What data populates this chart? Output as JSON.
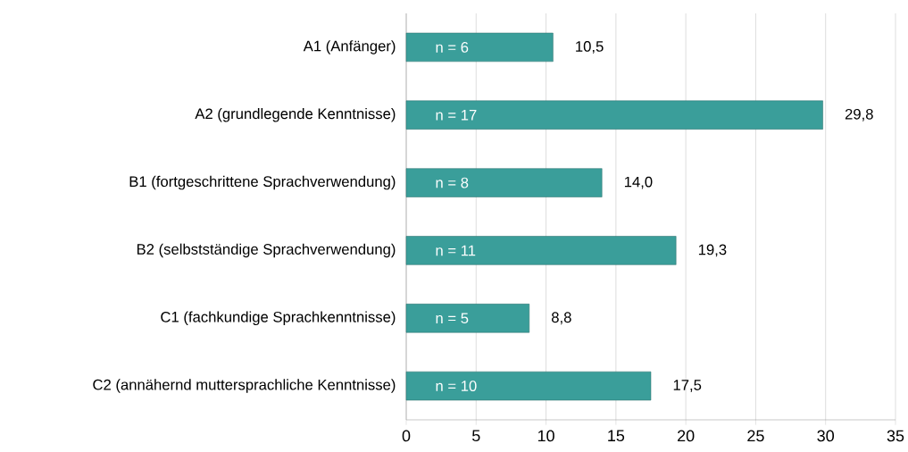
{
  "chart_data": {
    "type": "bar",
    "orientation": "horizontal",
    "categories": [
      "A1 (Anfänger)",
      "A2 (grundlegende Kenntnisse)",
      "B1 (fortgeschrittene Sprachverwendung)",
      "B2 (selbstständige Sprachverwendung)",
      "C1 (fachkundige Sprachkenntnisse)",
      "C2 (annähernd muttersprachliche Kenntnisse)"
    ],
    "values": [
      10.5,
      29.8,
      14.0,
      19.3,
      8.8,
      17.5
    ],
    "value_labels": [
      "10,5",
      "29,8",
      "14,0",
      "19,3",
      "8,8",
      "17,5"
    ],
    "color": "#3a9e9a",
    "xlim": [
      0,
      35
    ],
    "xticks": [
      0,
      5,
      10,
      15,
      20,
      25,
      30,
      35
    ],
    "grid": "x",
    "annotations": [
      "n = 6",
      "n = 17",
      "n = 8",
      "n = 11",
      "n = 5",
      "n = 10"
    ]
  }
}
